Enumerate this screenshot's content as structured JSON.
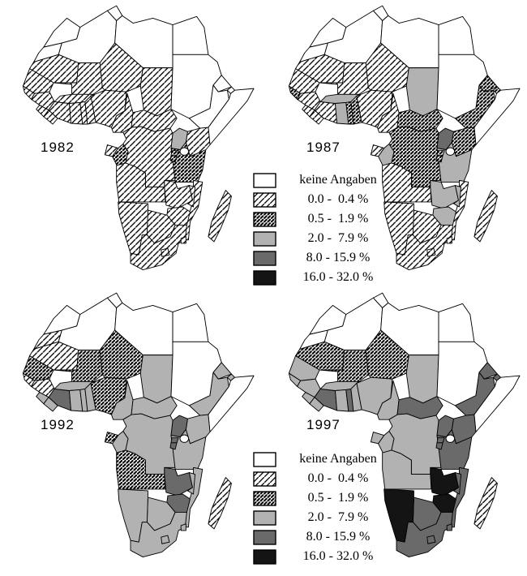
{
  "years": [
    {
      "label": "1982"
    },
    {
      "label": "1987"
    },
    {
      "label": "1992"
    },
    {
      "label": "1997"
    }
  ],
  "legend": {
    "items": [
      {
        "category": "no-data",
        "label": "keine Angaben"
      },
      {
        "category": "pct-0-04",
        "label": "0.0 -  0.4 %"
      },
      {
        "category": "pct-05-19",
        "label": "0.5 -  1.9 %"
      },
      {
        "category": "pct-2-79",
        "label": "2.0 -  7.9 %"
      },
      {
        "category": "pct-8-159",
        "label": "8.0 - 15.9 %"
      },
      {
        "category": "pct-16-32",
        "label": "16.0 - 32.0 %"
      }
    ],
    "placements": [
      "upper-right-of-1982",
      "lower-right-of-1992"
    ]
  },
  "styles": {
    "no-data": {
      "type": "solid",
      "fill": "#ffffff"
    },
    "pct-0-04": {
      "type": "hatch-light",
      "line_color": "#000000"
    },
    "pct-05-19": {
      "type": "hatch-dense",
      "line_color": "#000000"
    },
    "pct-2-79": {
      "type": "solid",
      "fill": "#b2b2b2"
    },
    "pct-8-159": {
      "type": "solid",
      "fill": "#6a6a6a"
    },
    "pct-16-32": {
      "type": "solid",
      "fill": "#141414"
    },
    "border_color": "#000000",
    "background": "#ffffff"
  },
  "map_data": {
    "1982": {
      "morocco": "no-data",
      "western-sahara": "no-data",
      "algeria": "no-data",
      "tunisia": "no-data",
      "libya": "no-data",
      "egypt": "no-data",
      "sudan": "no-data",
      "eritrea": "no-data",
      "ethiopia": "no-data",
      "djibouti": "no-data",
      "somalia": "no-data",
      "mauritania": "pct-0-04",
      "mali": "pct-0-04",
      "niger": "pct-0-04",
      "chad": "pct-0-04",
      "senegal": "pct-0-04",
      "guinea-bissau": "pct-0-04",
      "guinea": "pct-0-04",
      "sierra-leone": "pct-0-04",
      "liberia": "pct-0-04",
      "cote-divoire": "pct-0-04",
      "burkina-faso": "pct-0-04",
      "ghana": "pct-0-04",
      "togo": "pct-0-04",
      "benin": "pct-0-04",
      "nigeria": "pct-0-04",
      "cameroon": "pct-0-04",
      "central-african-republic": "pct-0-04",
      "kenya": "pct-0-04",
      "drc": "pct-0-04",
      "gabon": "pct-0-04",
      "angola": "pct-0-04",
      "zambia": "pct-0-04",
      "malawi": "pct-0-04",
      "mozambique": "pct-0-04",
      "zimbabwe": "pct-0-04",
      "botswana": "pct-0-04",
      "namibia": "pct-0-04",
      "south-africa": "pct-0-04",
      "lesotho": "pct-0-04",
      "swaziland": "pct-0-04",
      "madagascar": "pct-0-04",
      "congo": "pct-05-19",
      "rwanda": "pct-05-19",
      "burundi": "pct-05-19",
      "tanzania": "pct-05-19",
      "uganda": "pct-2-79"
    },
    "1987": {
      "morocco": "no-data",
      "western-sahara": "no-data",
      "algeria": "no-data",
      "tunisia": "no-data",
      "libya": "no-data",
      "egypt": "no-data",
      "sudan": "no-data",
      "somalia": "no-data",
      "mauritania": "pct-0-04",
      "mali": "pct-0-04",
      "niger": "pct-0-04",
      "senegal": "pct-0-04",
      "guinea": "pct-0-04",
      "sierra-leone": "pct-0-04",
      "liberia": "pct-0-04",
      "cote-divoire": "pct-0-04",
      "nigeria": "pct-0-04",
      "cameroon": "pct-0-04",
      "gabon": "pct-0-04",
      "angola": "pct-0-04",
      "mozambique": "pct-0-04",
      "namibia": "pct-0-04",
      "botswana": "pct-0-04",
      "south-africa": "pct-0-04",
      "lesotho": "pct-0-04",
      "swaziland": "pct-0-04",
      "madagascar": "pct-0-04",
      "guinea-bissau": "pct-05-19",
      "togo": "pct-05-19",
      "benin": "pct-05-19",
      "central-african-republic": "pct-05-19",
      "drc": "pct-05-19",
      "eritrea": "pct-05-19",
      "ethiopia": "pct-05-19",
      "djibouti": "pct-05-19",
      "kenya": "pct-05-19",
      "rwanda": "pct-05-19",
      "burundi": "pct-05-19",
      "ghana": "pct-2-79",
      "burkina-faso": "pct-2-79",
      "chad": "pct-2-79",
      "congo": "pct-2-79",
      "tanzania": "pct-2-79",
      "zambia": "pct-2-79",
      "malawi": "pct-2-79",
      "zimbabwe": "pct-2-79",
      "uganda": "pct-8-159"
    },
    "1992": {
      "morocco": "no-data",
      "algeria": "no-data",
      "tunisia": "no-data",
      "libya": "no-data",
      "egypt": "no-data",
      "sudan": "no-data",
      "somalia": "no-data",
      "western-sahara": "pct-0-04",
      "mauritania": "pct-0-04",
      "guinea-bissau": "pct-0-04",
      "guinea": "pct-0-04",
      "madagascar": "pct-0-04",
      "senegal": "pct-05-19",
      "mali": "pct-05-19",
      "niger": "pct-05-19",
      "nigeria": "pct-05-19",
      "gabon": "pct-05-19",
      "angola": "pct-05-19",
      "sierra-leone": "pct-2-79",
      "liberia": "pct-2-79",
      "ghana": "pct-2-79",
      "togo": "pct-2-79",
      "benin": "pct-2-79",
      "burkina-faso": "pct-2-79",
      "chad": "pct-2-79",
      "cameroon": "pct-2-79",
      "central-african-republic": "pct-2-79",
      "congo": "pct-2-79",
      "drc": "pct-2-79",
      "eritrea": "pct-2-79",
      "djibouti": "pct-2-79",
      "ethiopia": "pct-2-79",
      "kenya": "pct-2-79",
      "tanzania": "pct-2-79",
      "malawi": "pct-2-79",
      "mozambique": "pct-2-79",
      "namibia": "pct-2-79",
      "botswana": "pct-2-79",
      "south-africa": "pct-2-79",
      "lesotho": "pct-2-79",
      "swaziland": "pct-2-79",
      "cote-divoire": "pct-8-159",
      "uganda": "pct-8-159",
      "rwanda": "pct-8-159",
      "burundi": "pct-8-159",
      "zambia": "pct-8-159",
      "zimbabwe": "pct-8-159"
    },
    "1997": {
      "morocco": "no-data",
      "western-sahara": "no-data",
      "algeria": "no-data",
      "tunisia": "no-data",
      "libya": "no-data",
      "egypt": "no-data",
      "sudan": "no-data",
      "somalia": "no-data",
      "madagascar": "pct-0-04",
      "mauritania": "pct-05-19",
      "mali": "pct-05-19",
      "niger": "pct-05-19",
      "senegal": "pct-2-79",
      "guinea-bissau": "pct-2-79",
      "guinea": "pct-2-79",
      "sierra-leone": "pct-2-79",
      "liberia": "pct-2-79",
      "ghana": "pct-2-79",
      "benin": "pct-2-79",
      "burkina-faso": "pct-2-79",
      "nigeria": "pct-2-79",
      "chad": "pct-2-79",
      "cameroon": "pct-2-79",
      "gabon": "pct-2-79",
      "congo": "pct-2-79",
      "drc": "pct-2-79",
      "angola": "pct-2-79",
      "cote-divoire": "pct-8-159",
      "togo": "pct-8-159",
      "central-african-republic": "pct-8-159",
      "eritrea": "pct-8-159",
      "djibouti": "pct-8-159",
      "ethiopia": "pct-8-159",
      "kenya": "pct-8-159",
      "uganda": "pct-8-159",
      "rwanda": "pct-8-159",
      "burundi": "pct-8-159",
      "tanzania": "pct-8-159",
      "malawi": "pct-8-159",
      "mozambique": "pct-8-159",
      "botswana": "pct-8-159",
      "south-africa": "pct-8-159",
      "lesotho": "pct-8-159",
      "swaziland": "pct-8-159",
      "zambia": "pct-16-32",
      "zimbabwe": "pct-16-32",
      "namibia": "pct-16-32"
    }
  }
}
